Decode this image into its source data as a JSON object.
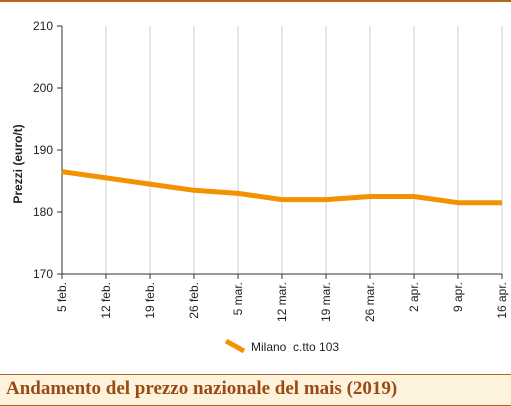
{
  "chart_data": {
    "type": "line",
    "title": "Andamento del prezzo nazionale del mais (2019)",
    "xlabel": "",
    "ylabel": "Prezzi (euro/t)",
    "ylim": [
      170,
      210
    ],
    "yticks": [
      170,
      180,
      190,
      200,
      210
    ],
    "categories": [
      "5 feb.",
      "12 feb.",
      "19 feb.",
      "26 feb.",
      "5 mar.",
      "12 mar.",
      "19 mar.",
      "26 mar.",
      "2 apr.",
      "9 apr.",
      "16 apr."
    ],
    "series": [
      {
        "name": "Milano  c.tto 103",
        "color": "#f39200",
        "values": [
          186.5,
          185.5,
          184.5,
          183.5,
          183,
          182,
          182,
          182.5,
          182.5,
          181.5,
          181.5
        ]
      }
    ],
    "grid": "vertical",
    "legend_position": "bottom-center",
    "grid_color": "#cfcfcf",
    "axis_color": "#333333"
  }
}
